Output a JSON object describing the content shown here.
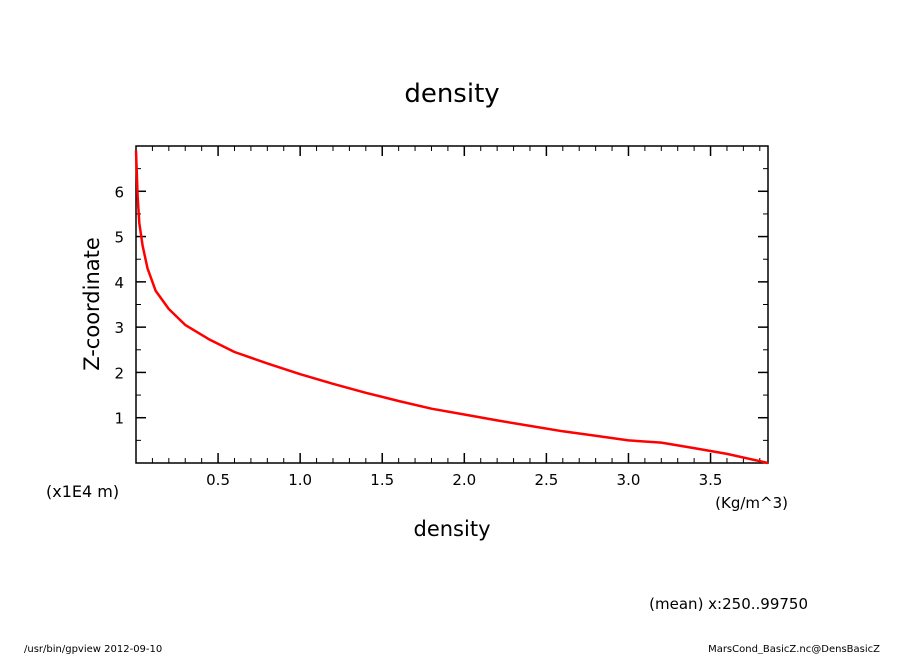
{
  "chart_data": {
    "type": "line",
    "title": "density",
    "xlabel": "density",
    "x_unit": "(Kg/m^3)",
    "ylabel": "Z-coordinate",
    "y_unit": "(x1E4 m)",
    "xlim": [
      0,
      3.85
    ],
    "ylim": [
      0,
      7
    ],
    "x_ticks": [
      0.5,
      1.0,
      1.5,
      2.0,
      2.5,
      3.0,
      3.5
    ],
    "x_tick_labels": [
      "0.5",
      "1.0",
      "1.5",
      "2.0",
      "2.5",
      "3.0",
      "3.5"
    ],
    "y_ticks": [
      1,
      2,
      3,
      4,
      5,
      6
    ],
    "y_tick_labels": [
      "1",
      "2",
      "3",
      "4",
      "5",
      "6"
    ],
    "grid": false,
    "series": [
      {
        "color": "#ff0000",
        "x": [
          3.85,
          3.6,
          3.4,
          3.2,
          3.0,
          2.8,
          2.6,
          2.4,
          2.2,
          2.0,
          1.8,
          1.6,
          1.4,
          1.2,
          1.0,
          0.8,
          0.6,
          0.45,
          0.3,
          0.2,
          0.12,
          0.07,
          0.04,
          0.02,
          0.01,
          0.0
        ],
        "y": [
          0.0,
          0.2,
          0.33,
          0.45,
          0.5,
          0.6,
          0.7,
          0.82,
          0.94,
          1.07,
          1.2,
          1.37,
          1.55,
          1.75,
          1.96,
          2.2,
          2.45,
          2.72,
          3.05,
          3.4,
          3.8,
          4.3,
          4.8,
          5.3,
          5.9,
          6.9
        ]
      }
    ]
  },
  "footer": {
    "mean_note": "(mean) x:250..99750",
    "left": "/usr/bin/gpview   2012-09-10",
    "right": "MarsCond_BasicZ.nc@DensBasicZ"
  }
}
